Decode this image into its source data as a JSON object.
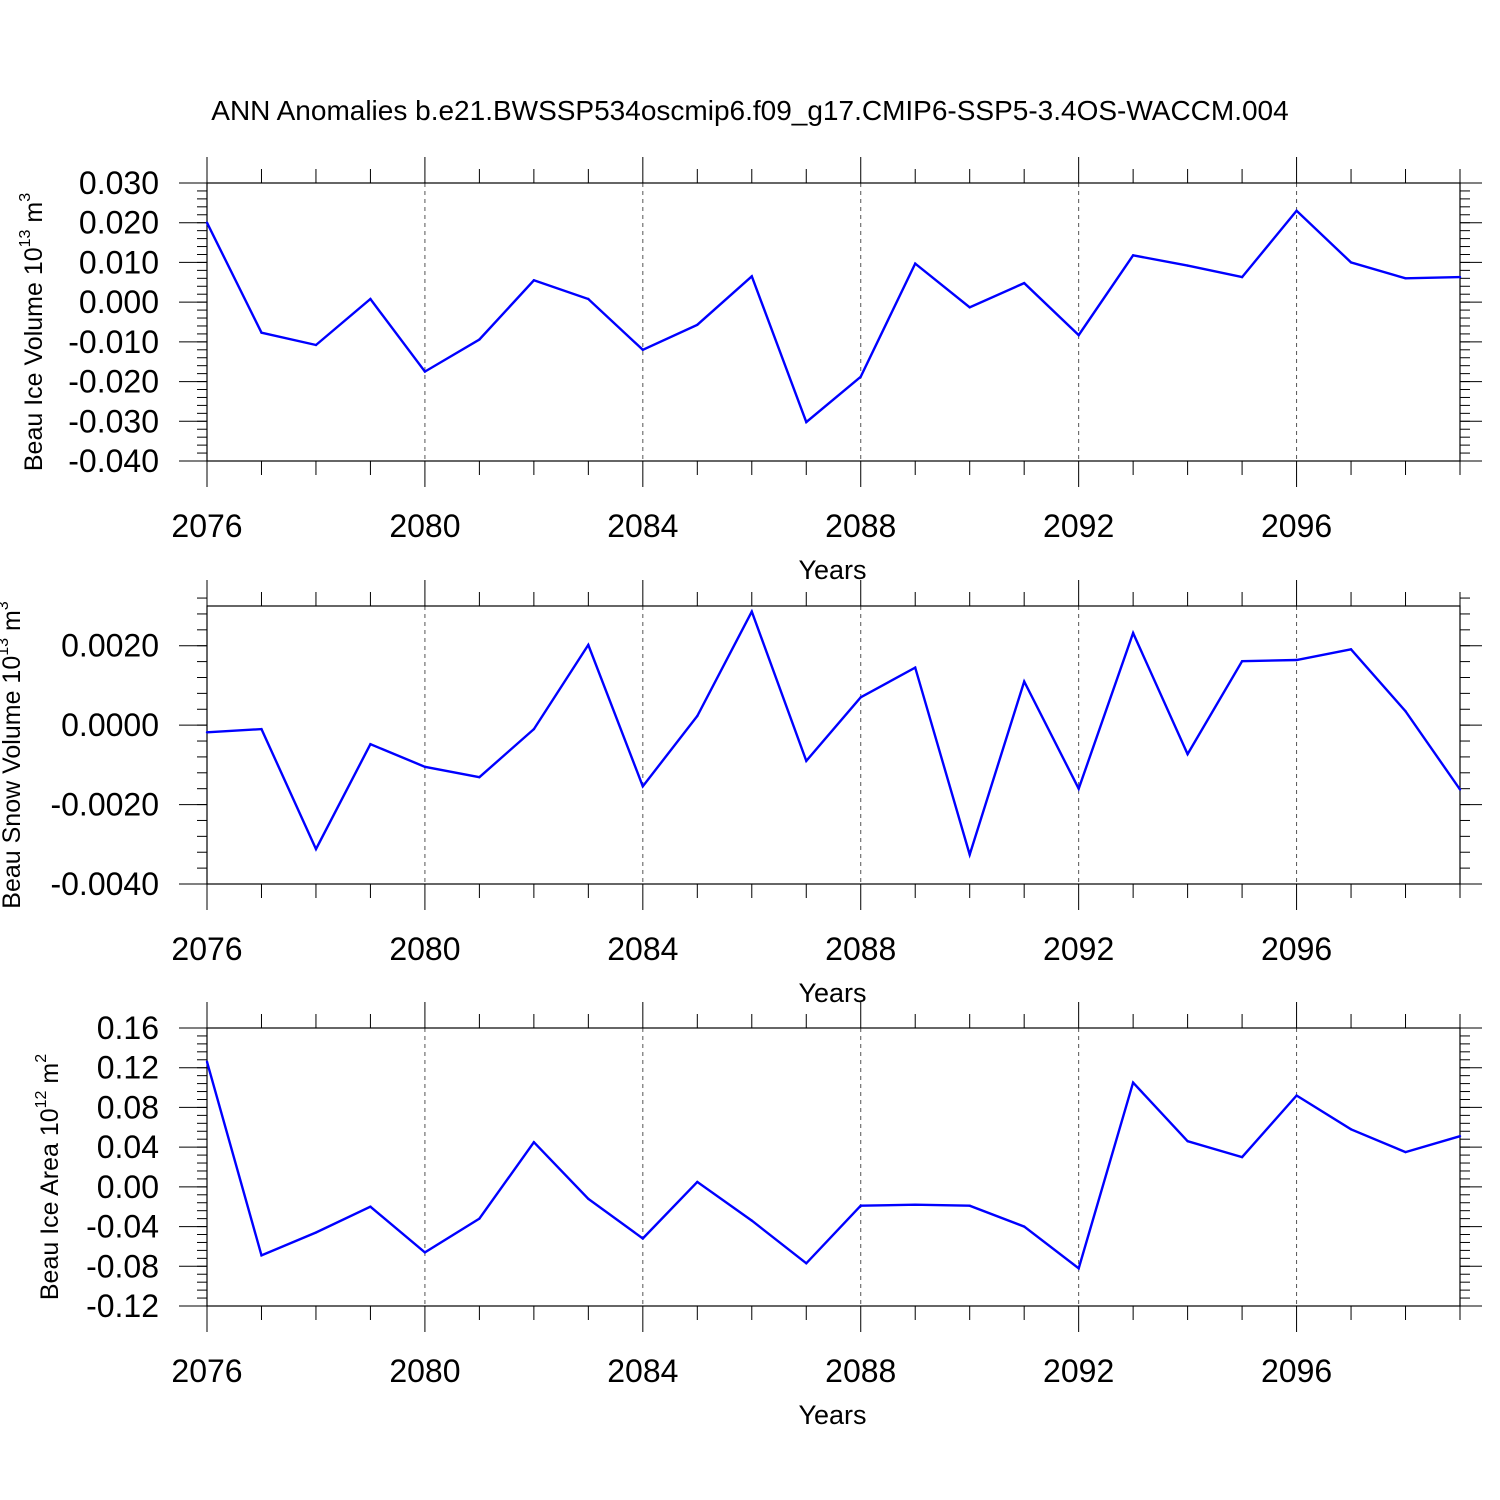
{
  "title": "ANN Anomalies b.e21.BWSSP534oscmip6.f09_g17.CMIP6-SSP5-3.4OS-WACCM.004",
  "line_color": "#0000ff",
  "chart_data": [
    {
      "type": "line",
      "ylabel_main": "Beau Ice Volume 10",
      "ylabel_exp": "13",
      "ylabel_unit": " m",
      "ylabel_unit_exp": "3",
      "xlabel": "Years",
      "xlim": [
        2076,
        2099
      ],
      "ylim": [
        -0.04,
        0.03
      ],
      "x_ticks": [
        2076,
        2080,
        2084,
        2088,
        2092,
        2096
      ],
      "x_tick_labels": [
        "2076",
        "2080",
        "2084",
        "2088",
        "2092",
        "2096"
      ],
      "y_ticks": [
        -0.04,
        -0.03,
        -0.02,
        -0.01,
        0.0,
        0.01,
        0.02,
        0.03
      ],
      "y_tick_labels": [
        "-0.040",
        "-0.030",
        "-0.020",
        "-0.010",
        "0.000",
        "0.010",
        "0.020",
        "0.030"
      ],
      "y_minor_step": 0.002,
      "grid": "vertical dashed at major x ticks",
      "x": [
        2076,
        2077,
        2078,
        2079,
        2080,
        2081,
        2082,
        2083,
        2084,
        2085,
        2086,
        2087,
        2088,
        2089,
        2090,
        2091,
        2092,
        2093,
        2094,
        2095,
        2096,
        2097,
        2098,
        2099
      ],
      "values": [
        0.02,
        -0.0077,
        -0.0108,
        0.0008,
        -0.0175,
        -0.0094,
        0.0055,
        0.0008,
        -0.012,
        -0.0057,
        0.0065,
        -0.0302,
        -0.0188,
        0.0097,
        -0.0013,
        0.0048,
        -0.0083,
        0.0118,
        0.0092,
        0.0063,
        0.023,
        0.01,
        0.006,
        0.0063
      ]
    },
    {
      "type": "line",
      "ylabel_main": "Beau Snow Volume 10",
      "ylabel_exp": "13",
      "ylabel_unit": " m",
      "ylabel_unit_exp": "3",
      "xlabel": "Years",
      "xlim": [
        2076,
        2099
      ],
      "ylim": [
        -0.004,
        0.003
      ],
      "x_ticks": [
        2076,
        2080,
        2084,
        2088,
        2092,
        2096
      ],
      "x_tick_labels": [
        "2076",
        "2080",
        "2084",
        "2088",
        "2092",
        "2096"
      ],
      "y_ticks": [
        -0.004,
        -0.002,
        0.0,
        0.002
      ],
      "y_tick_labels": [
        "-0.0040",
        "-0.0020",
        "0.0000",
        "0.0020"
      ],
      "y_minor_step": 0.0004,
      "grid": "vertical dashed at major x ticks",
      "x": [
        2076,
        2077,
        2078,
        2079,
        2080,
        2081,
        2082,
        2083,
        2084,
        2085,
        2086,
        2087,
        2088,
        2089,
        2090,
        2091,
        2092,
        2093,
        2094,
        2095,
        2096,
        2097,
        2098,
        2099
      ],
      "values": [
        -0.00018,
        -0.0001,
        -0.00312,
        -0.00048,
        -0.00105,
        -0.00131,
        -0.0001,
        0.00202,
        -0.00154,
        0.00023,
        0.00286,
        -0.0009,
        0.0007,
        0.00145,
        -0.00326,
        0.0011,
        -0.0016,
        0.00232,
        -0.00073,
        0.00161,
        0.00164,
        0.00191,
        0.00035,
        -0.00162
      ]
    },
    {
      "type": "line",
      "ylabel_main": "Beau Ice Area 10",
      "ylabel_exp": "12",
      "ylabel_unit": " m",
      "ylabel_unit_exp": "2",
      "xlabel": "Years",
      "xlim": [
        2076,
        2099
      ],
      "ylim": [
        -0.12,
        0.16
      ],
      "x_ticks": [
        2076,
        2080,
        2084,
        2088,
        2092,
        2096
      ],
      "x_tick_labels": [
        "2076",
        "2080",
        "2084",
        "2088",
        "2092",
        "2096"
      ],
      "y_ticks": [
        -0.12,
        -0.08,
        -0.04,
        0.0,
        0.04,
        0.08,
        0.12,
        0.16
      ],
      "y_tick_labels": [
        "-0.12",
        "-0.08",
        "-0.04",
        "0.00",
        "0.04",
        "0.08",
        "0.12",
        "0.16"
      ],
      "y_minor_step": 0.008,
      "grid": "vertical dashed at major x ticks",
      "x": [
        2076,
        2077,
        2078,
        2079,
        2080,
        2081,
        2082,
        2083,
        2084,
        2085,
        2086,
        2087,
        2088,
        2089,
        2090,
        2091,
        2092,
        2093,
        2094,
        2095,
        2096,
        2097,
        2098,
        2099
      ],
      "values": [
        0.126,
        -0.069,
        -0.046,
        -0.02,
        -0.066,
        -0.032,
        0.045,
        -0.012,
        -0.052,
        0.005,
        -0.034,
        -0.077,
        -0.019,
        -0.018,
        -0.019,
        -0.04,
        -0.082,
        0.105,
        0.046,
        0.03,
        0.092,
        0.058,
        0.035,
        0.051
      ]
    }
  ]
}
